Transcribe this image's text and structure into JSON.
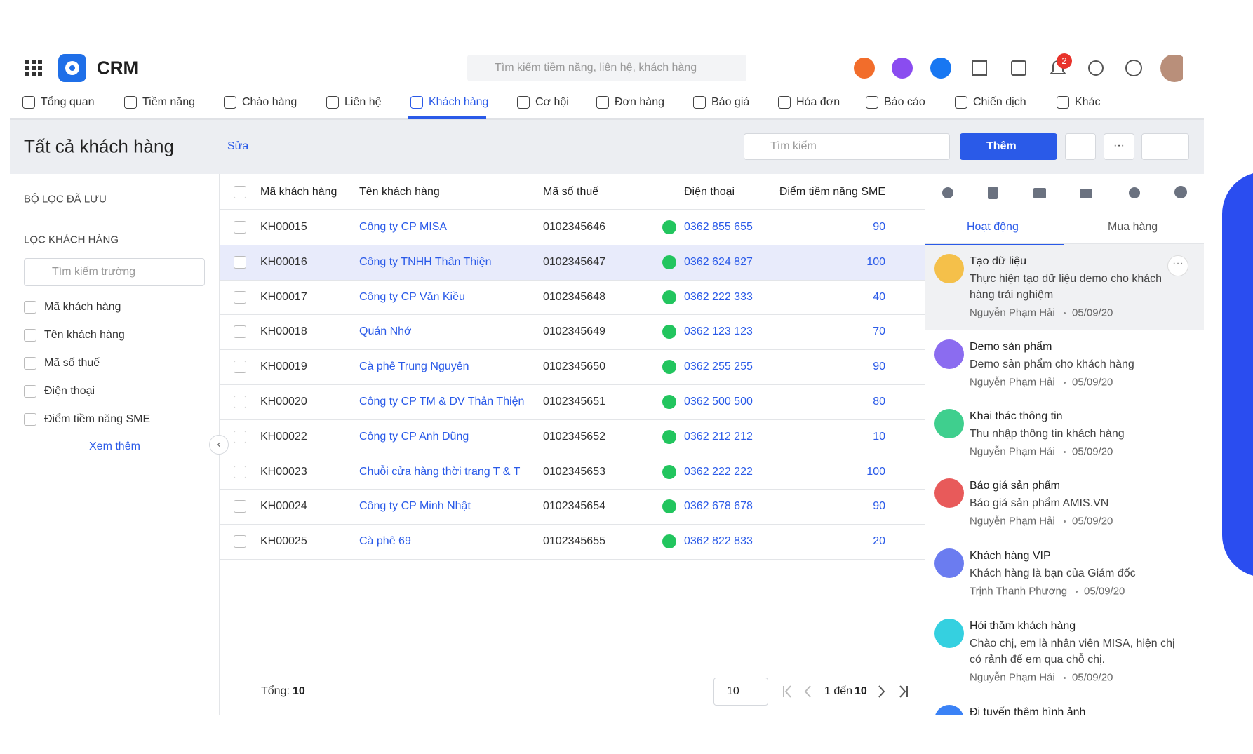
{
  "header": {
    "app_name": "CRM",
    "search_placeholder": "Tìm kiếm tiềm năng, liên hệ, khách hàng",
    "notification_count": "2"
  },
  "nav": {
    "items": [
      "Tổng quan",
      "Tiềm năng",
      "Chào hàng",
      "Liên hệ",
      "Khách hàng",
      "Cơ hội",
      "Đơn hàng",
      "Báo giá",
      "Hóa đơn",
      "Báo cáo",
      "Chiến dịch",
      "Khác"
    ],
    "active": 4
  },
  "toolbar": {
    "title": "Tất cả khách hàng",
    "edit": "Sửa",
    "search_placeholder": "Tìm kiếm",
    "add_button": "Thêm"
  },
  "sidebar": {
    "saved_filters": "BỘ LỌC ĐÃ LƯU",
    "filter_title": "LỌC KHÁCH HÀNG",
    "field_search": "Tìm kiếm trường",
    "fields": [
      "Mã khách hàng",
      "Tên khách hàng",
      "Mã số thuế",
      "Điện thoại",
      "Điểm tiềm năng SME"
    ],
    "more": "Xem thêm"
  },
  "table": {
    "columns": [
      "Mã khách hàng",
      "Tên khách hàng",
      "Mã số thuế",
      "Điện thoại",
      "Điểm tiềm năng SME"
    ],
    "rows": [
      [
        "KH00015",
        "Công ty CP MISA",
        "0102345646",
        "0362 855 655",
        90
      ],
      [
        "KH00016",
        "Công ty TNHH Thân Thiện",
        "0102345647",
        "0362 624 827",
        100
      ],
      [
        "KH00017",
        "Công ty CP Văn Kiều",
        "0102345648",
        "0362 222 333",
        40
      ],
      [
        "KH00018",
        "Quán Nhớ",
        "0102345649",
        "0362 123 123",
        70
      ],
      [
        "KH00019",
        "Cà phê Trung Nguyên",
        "0102345650",
        "0362 255 255",
        90
      ],
      [
        "KH00020",
        "Công ty CP TM & DV Thân Thiện",
        "0102345651",
        "0362 500 500",
        80
      ],
      [
        "KH00022",
        "Công ty CP Anh Dũng",
        "0102345652",
        "0362 212 212",
        10
      ],
      [
        "KH00023",
        "Chuỗi cửa hàng thời trang T & T",
        "0102345653",
        "0362 222 222",
        100
      ],
      [
        "KH00024",
        "Công ty CP Minh Nhật",
        "0102345654",
        "0362 678 678",
        90
      ],
      [
        "KH00025",
        "Cà phê 69",
        "0102345655",
        "0362 822 833",
        20
      ]
    ]
  },
  "footer": {
    "total_label": "Tổng:",
    "total": 10,
    "page_size": 10,
    "range_text": "1 đến",
    "range_end": 10
  },
  "panel": {
    "tabs": [
      "Hoạt động",
      "Mua hàng"
    ],
    "activities": [
      {
        "title": "Tạo dữ liệu",
        "description": "Thực hiện tạo dữ liệu demo cho khách hàng trải nghiệm",
        "author": "Nguyễn Phạm Hải",
        "date": "05/09/20"
      },
      {
        "title": "Demo sản phẩm",
        "description": "Demo sản phẩm cho khách hàng",
        "author": "Nguyễn Phạm Hải",
        "date": "05/09/20"
      },
      {
        "title": "Khai thác thông tin",
        "description": "Thu nhập thông tin khách hàng",
        "author": "Nguyễn Phạm Hải",
        "date": "05/09/20"
      },
      {
        "title": "Báo giá sản phẩm",
        "description": "Báo giá sản phẩm AMIS.VN",
        "author": "Nguyễn Phạm Hải",
        "date": "05/09/20"
      },
      {
        "title": "Khách hàng VIP",
        "description": "Khách hàng là bạn của Giám đốc",
        "author": "Trịnh Thanh Phương",
        "date": "05/09/20"
      },
      {
        "title": "Hỏi thăm khách hàng",
        "description": "Chào chị, em là nhân viên MISA, hiện chị có rảnh để em qua chỗ chị.",
        "author": "Nguyễn Phạm Hải",
        "date": "05/09/20"
      },
      {
        "title": "Đi tuyến thêm hình ảnh"
      }
    ]
  }
}
